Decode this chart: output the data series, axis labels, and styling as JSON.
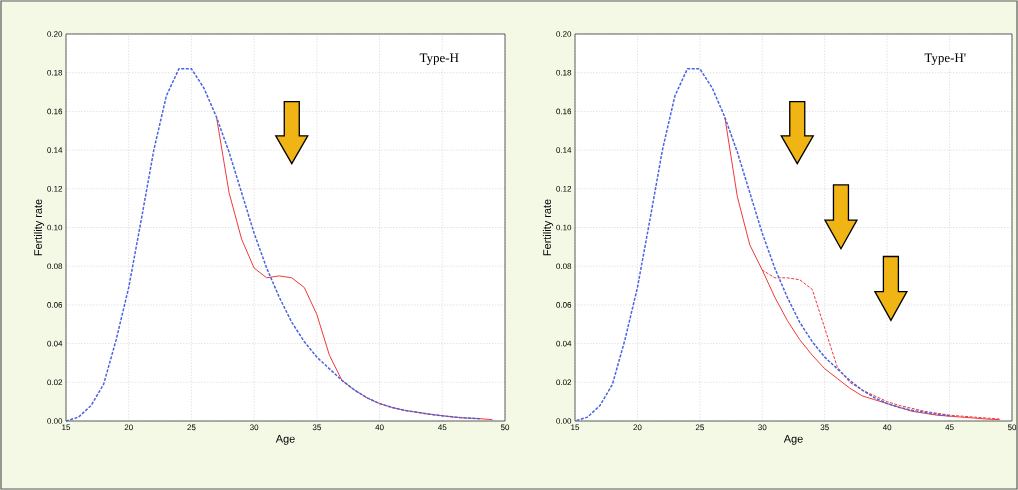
{
  "chart_data": [
    {
      "type": "line",
      "annotations": [
        "Type-H"
      ],
      "xlabel": "Age",
      "ylabel": "Fertility rate",
      "xlim": [
        15,
        50
      ],
      "ylim": [
        0,
        0.2
      ],
      "xticks": [
        15,
        20,
        25,
        30,
        35,
        40,
        45,
        50
      ],
      "yticks": [
        {
          "value": 0,
          "label": "0.00"
        },
        {
          "value": 0.02,
          "label": "0.02"
        },
        {
          "value": 0.04,
          "label": "0.04"
        },
        {
          "value": 0.06,
          "label": "0.06"
        },
        {
          "value": 0.08,
          "label": "0.08"
        },
        {
          "value": 0.1,
          "label": "0.10"
        },
        {
          "value": 0.12,
          "label": "0.12"
        },
        {
          "value": 0.14,
          "label": "0.14"
        },
        {
          "value": 0.16,
          "label": "0.16"
        },
        {
          "value": 0.18,
          "label": "0.18"
        },
        {
          "value": 0.2,
          "label": "0.20"
        }
      ],
      "grid": true,
      "series": [
        {
          "color": "#4a63e0",
          "line_style": "dashed",
          "x": [
            15,
            16,
            17,
            18,
            19,
            20,
            21,
            22,
            23,
            24,
            25,
            26,
            27,
            28,
            29,
            30,
            31,
            32,
            33,
            34,
            35,
            36,
            37,
            38,
            39,
            40,
            41,
            42,
            43,
            44,
            45,
            46,
            47,
            48
          ],
          "values": [
            0.0,
            0.002,
            0.008,
            0.019,
            0.042,
            0.069,
            0.104,
            0.14,
            0.168,
            0.182,
            0.182,
            0.172,
            0.157,
            0.139,
            0.118,
            0.097,
            0.079,
            0.064,
            0.051,
            0.041,
            0.033,
            0.027,
            0.021,
            0.016,
            0.012,
            0.009,
            0.007,
            0.0055,
            0.0045,
            0.0035,
            0.0027,
            0.002,
            0.0015,
            0.0012
          ]
        },
        {
          "color": "#ee3a3a",
          "line_style": "solid",
          "x": [
            27,
            28,
            29,
            30,
            31,
            32,
            33,
            34,
            35,
            36,
            37,
            38,
            39,
            40,
            41,
            42,
            43,
            44,
            45,
            46,
            47,
            48,
            49
          ],
          "values": [
            0.157,
            0.118,
            0.094,
            0.079,
            0.074,
            0.075,
            0.074,
            0.069,
            0.055,
            0.034,
            0.021,
            0.016,
            0.012,
            0.009,
            0.007,
            0.0055,
            0.0045,
            0.0035,
            0.0027,
            0.002,
            0.0015,
            0.0012,
            0.0007
          ]
        }
      ]
    },
    {
      "type": "line",
      "annotations": [
        "Type-H'"
      ],
      "xlabel": "Age",
      "ylabel": "Fertility rate",
      "xlim": [
        15,
        50
      ],
      "ylim": [
        0,
        0.2
      ],
      "xticks": [
        15,
        20,
        25,
        30,
        35,
        40,
        45,
        50
      ],
      "yticks": [
        {
          "value": 0,
          "label": "0.00"
        },
        {
          "value": 0.02,
          "label": "0.02"
        },
        {
          "value": 0.04,
          "label": "0.04"
        },
        {
          "value": 0.06,
          "label": "0.06"
        },
        {
          "value": 0.08,
          "label": "0.08"
        },
        {
          "value": 0.1,
          "label": "0.10"
        },
        {
          "value": 0.12,
          "label": "0.12"
        },
        {
          "value": 0.14,
          "label": "0.14"
        },
        {
          "value": 0.16,
          "label": "0.16"
        },
        {
          "value": 0.18,
          "label": "0.18"
        },
        {
          "value": 0.2,
          "label": "0.20"
        }
      ],
      "grid": true,
      "series": [
        {
          "color": "#4a63e0",
          "line_style": "dashed",
          "x": [
            15,
            16,
            17,
            18,
            19,
            20,
            21,
            22,
            23,
            24,
            25,
            26,
            27,
            28,
            29,
            30,
            31,
            32,
            33,
            34,
            35,
            36,
            37,
            38,
            39,
            40,
            41,
            42,
            43,
            44,
            45
          ],
          "values": [
            0.0,
            0.002,
            0.008,
            0.019,
            0.042,
            0.069,
            0.104,
            0.14,
            0.168,
            0.182,
            0.182,
            0.172,
            0.157,
            0.139,
            0.118,
            0.097,
            0.079,
            0.064,
            0.051,
            0.041,
            0.033,
            0.027,
            0.021,
            0.016,
            0.012,
            0.009,
            0.007,
            0.0055,
            0.0045,
            0.0035,
            0.0027
          ]
        },
        {
          "color": "#ee3a3a",
          "line_style": "dashed",
          "x": [
            30,
            31,
            32,
            33,
            34,
            35,
            36,
            37,
            38,
            39,
            40,
            41,
            42,
            43,
            44,
            45,
            46,
            47,
            48,
            49
          ],
          "values": [
            0.078,
            0.074,
            0.074,
            0.073,
            0.068,
            0.048,
            0.028,
            0.02,
            0.016,
            0.013,
            0.01,
            0.008,
            0.0065,
            0.005,
            0.004,
            0.003,
            0.0025,
            0.002,
            0.0015,
            0.001
          ]
        },
        {
          "color": "#ee3a3a",
          "line_style": "solid",
          "x": [
            27,
            28,
            29,
            30,
            31,
            32,
            33,
            34,
            35,
            36,
            37,
            38,
            39,
            40,
            41,
            42,
            43,
            44,
            45,
            46,
            47,
            48,
            49
          ],
          "values": [
            0.157,
            0.116,
            0.091,
            0.078,
            0.064,
            0.052,
            0.042,
            0.034,
            0.027,
            0.022,
            0.017,
            0.013,
            0.011,
            0.009,
            0.007,
            0.005,
            0.004,
            0.003,
            0.0025,
            0.002,
            0.0015,
            0.001,
            0.0007
          ]
        }
      ]
    }
  ]
}
